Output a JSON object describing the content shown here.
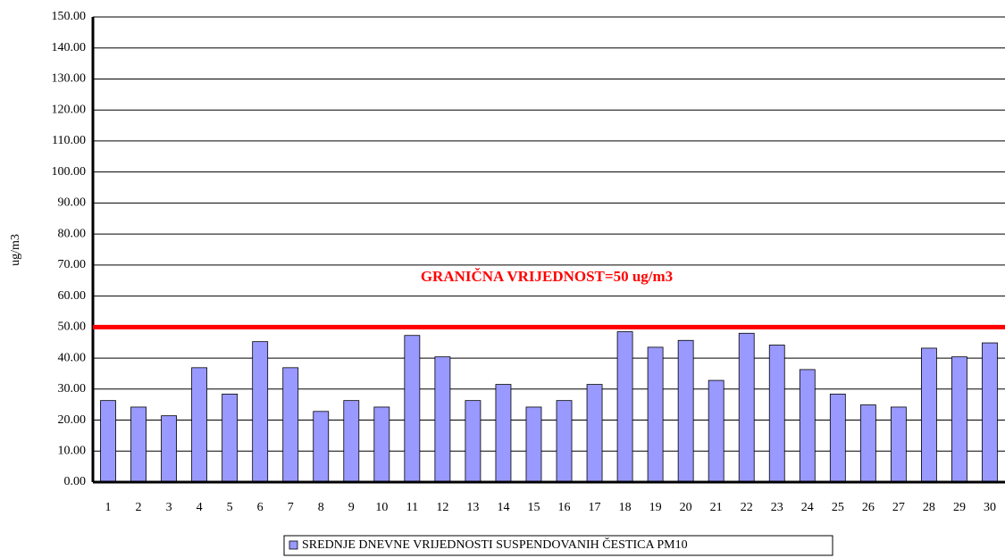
{
  "chart_data": {
    "type": "bar",
    "y_label": "ug/m3",
    "annotation": "GRANIČNA VRIJEDNOST=50 ug/m3",
    "threshold": 50,
    "threshold_color": "#ff0000",
    "categories": [
      "1",
      "2",
      "3",
      "4",
      "5",
      "6",
      "7",
      "8",
      "9",
      "10",
      "11",
      "12",
      "13",
      "14",
      "15",
      "16",
      "17",
      "18",
      "19",
      "20",
      "21",
      "22",
      "23",
      "24",
      "25",
      "26",
      "27",
      "28",
      "29",
      "30"
    ],
    "series": [
      {
        "name": "SREDNJE DNEVNE VRIJEDNOSTI SUSPENDOVANIH ČESTICA PM10",
        "color": "#9999ff",
        "values": [
          26.3,
          24.2,
          21.4,
          36.9,
          28.4,
          45.3,
          36.9,
          22.8,
          26.3,
          24.2,
          47.3,
          40.4,
          26.3,
          31.5,
          24.2,
          26.3,
          31.5,
          48.5,
          43.5,
          45.7,
          32.8,
          48.0,
          44.2,
          36.3,
          28.4,
          24.9,
          24.2,
          43.2,
          40.4,
          44.9
        ]
      }
    ],
    "ylim": [
      0,
      150
    ],
    "yticks": [
      {
        "value": 0,
        "label": "0.00"
      },
      {
        "value": 10,
        "label": "10.00"
      },
      {
        "value": 20,
        "label": "20.00"
      },
      {
        "value": 30,
        "label": "30.00"
      },
      {
        "value": 40,
        "label": "40.00"
      },
      {
        "value": 50,
        "label": "50.00"
      },
      {
        "value": 60,
        "label": "60.00"
      },
      {
        "value": 70,
        "label": "70.00"
      },
      {
        "value": 80,
        "label": "80.00"
      },
      {
        "value": 90,
        "label": "90.00"
      },
      {
        "value": 100,
        "label": "100.00"
      },
      {
        "value": 110,
        "label": "110.00"
      },
      {
        "value": 120,
        "label": "120.00"
      },
      {
        "value": 130,
        "label": "130.00"
      },
      {
        "value": 140,
        "label": "140.00"
      },
      {
        "value": 150,
        "label": "150.00"
      }
    ],
    "grid": true
  }
}
